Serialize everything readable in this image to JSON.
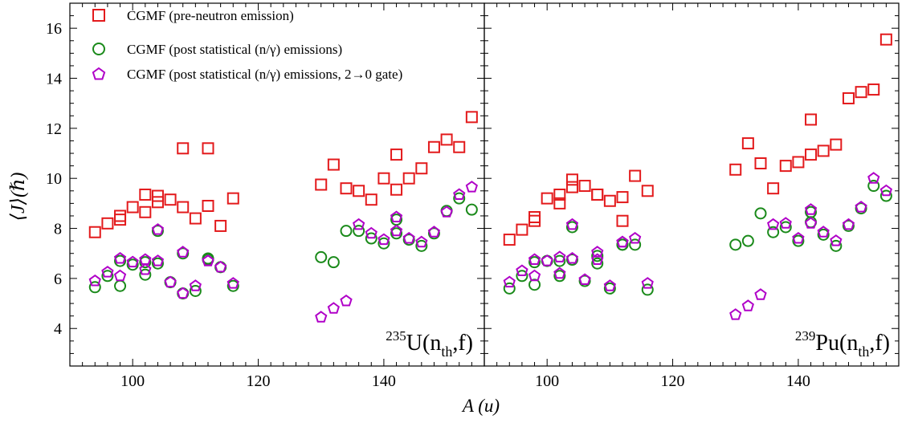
{
  "colors": {
    "pre": "#e31a1c",
    "post": "#1a8a1a",
    "gate": "#b000c8"
  },
  "legend": {
    "location": "top-left",
    "entries": [
      {
        "label": "CGMF (pre-neutron emission)",
        "marker": "square",
        "color": "#e31a1c"
      },
      {
        "label": "CGMF (post statistical (n/γ) emissions)",
        "marker": "circle",
        "color": "#1a8a1a"
      },
      {
        "label": "CGMF (post statistical (n/γ) emissions, 2→0 gate)",
        "marker": "pentagon",
        "color": "#b000c8"
      }
    ]
  },
  "chart_data": [
    {
      "type": "scatter",
      "panel_label": {
        "sup": "235",
        "base": "U(n",
        "sub": "th",
        "tail": ",f)"
      },
      "xlabel": "A (u)",
      "ylabel": "⟨J⟩(ℏ)",
      "xlim": [
        90,
        156
      ],
      "ylim": [
        2.5,
        17
      ],
      "xticks": [
        100,
        120,
        140
      ],
      "yticks": [
        4,
        6,
        8,
        10,
        12,
        14,
        16
      ],
      "series": [
        {
          "name": "CGMF (pre-neutron emission)",
          "marker": "square",
          "x": [
            94,
            96,
            98,
            98,
            100,
            102,
            102,
            104,
            104,
            106,
            108,
            108,
            110,
            112,
            112,
            114,
            116,
            130,
            132,
            134,
            136,
            138,
            140,
            142,
            142,
            144,
            146,
            148,
            150,
            152,
            154
          ],
          "y": [
            7.85,
            8.2,
            8.35,
            8.5,
            8.85,
            8.65,
            9.35,
            9.05,
            9.3,
            9.15,
            8.85,
            11.2,
            8.4,
            8.9,
            11.2,
            8.1,
            9.2,
            9.75,
            10.55,
            9.6,
            9.5,
            9.15,
            10.0,
            9.55,
            10.95,
            10.0,
            10.4,
            11.25,
            11.55,
            11.25,
            12.45
          ]
        },
        {
          "name": "CGMF (post statistical (n/γ) emissions)",
          "marker": "circle",
          "x": [
            94,
            96,
            98,
            98,
            100,
            102,
            102,
            104,
            104,
            106,
            108,
            108,
            110,
            112,
            112,
            114,
            116,
            130,
            132,
            134,
            136,
            138,
            140,
            142,
            142,
            144,
            146,
            148,
            150,
            152,
            154
          ],
          "y": [
            5.65,
            6.1,
            5.7,
            6.7,
            6.55,
            6.15,
            6.65,
            6.6,
            7.9,
            5.85,
            5.4,
            7.0,
            5.5,
            6.75,
            6.8,
            6.45,
            5.7,
            6.85,
            6.65,
            7.9,
            7.9,
            7.6,
            7.4,
            7.8,
            8.35,
            7.55,
            7.3,
            7.8,
            8.7,
            9.2,
            8.75
          ]
        },
        {
          "name": "CGMF (post statistical (n/γ) emissions, 2→0 gate)",
          "marker": "pentagon",
          "x": [
            94,
            96,
            98,
            98,
            100,
            102,
            102,
            104,
            104,
            106,
            108,
            108,
            110,
            112,
            112,
            114,
            116,
            130,
            132,
            134,
            136,
            138,
            140,
            142,
            142,
            144,
            146,
            148,
            150,
            152,
            154
          ],
          "y": [
            5.9,
            6.25,
            6.1,
            6.8,
            6.65,
            6.35,
            6.75,
            6.7,
            7.95,
            5.85,
            5.4,
            7.05,
            5.7,
            6.7,
            6.7,
            6.45,
            5.8,
            4.45,
            4.8,
            5.1,
            8.15,
            7.8,
            7.55,
            7.9,
            8.45,
            7.6,
            7.45,
            7.85,
            8.65,
            9.35,
            9.65
          ]
        }
      ]
    },
    {
      "type": "scatter",
      "panel_label": {
        "sup": "239",
        "base": "Pu(n",
        "sub": "th",
        "tail": ",f)"
      },
      "xlabel": "A (u)",
      "ylabel": "",
      "xlim": [
        90,
        156
      ],
      "ylim": [
        2.5,
        17
      ],
      "xticks": [
        100,
        120,
        140
      ],
      "yticks": [
        4,
        6,
        8,
        10,
        12,
        14,
        16
      ],
      "series": [
        {
          "name": "CGMF (pre-neutron emission)",
          "marker": "square",
          "x": [
            94,
            96,
            98,
            98,
            100,
            102,
            102,
            104,
            104,
            106,
            108,
            108,
            110,
            112,
            112,
            114,
            116,
            130,
            132,
            134,
            136,
            138,
            140,
            142,
            142,
            144,
            146,
            148,
            150,
            152,
            154
          ],
          "y": [
            7.55,
            7.95,
            8.3,
            8.45,
            9.2,
            9.0,
            9.35,
            9.65,
            9.95,
            9.7,
            9.35,
            9.35,
            9.1,
            8.3,
            9.25,
            10.1,
            9.5,
            10.35,
            11.4,
            10.6,
            9.6,
            10.5,
            10.65,
            10.95,
            12.35,
            11.1,
            11.35,
            13.2,
            13.45,
            13.55,
            15.55
          ]
        },
        {
          "name": "CGMF (post statistical (n/γ) emissions)",
          "marker": "circle",
          "x": [
            94,
            96,
            98,
            98,
            100,
            102,
            102,
            104,
            104,
            106,
            108,
            108,
            110,
            112,
            112,
            114,
            116,
            130,
            132,
            134,
            136,
            138,
            140,
            142,
            142,
            144,
            146,
            148,
            150,
            152,
            154
          ],
          "y": [
            5.6,
            6.1,
            5.75,
            6.65,
            6.7,
            6.1,
            6.7,
            6.75,
            8.05,
            5.9,
            6.6,
            6.9,
            5.6,
            7.35,
            7.35,
            7.35,
            5.55,
            7.35,
            7.5,
            8.6,
            7.85,
            8.05,
            7.5,
            8.25,
            8.65,
            7.75,
            7.3,
            8.1,
            8.8,
            9.7,
            9.3
          ]
        },
        {
          "name": "CGMF (post statistical (n/γ) emissions, 2→0 gate)",
          "marker": "pentagon",
          "x": [
            94,
            96,
            98,
            98,
            100,
            102,
            102,
            104,
            104,
            106,
            108,
            108,
            110,
            112,
            112,
            114,
            116,
            130,
            132,
            134,
            136,
            138,
            140,
            142,
            142,
            144,
            146,
            148,
            150,
            152,
            154
          ],
          "y": [
            5.85,
            6.3,
            6.1,
            6.75,
            6.7,
            6.2,
            6.85,
            6.8,
            8.15,
            5.95,
            6.75,
            7.05,
            5.7,
            7.45,
            7.45,
            7.6,
            5.8,
            4.55,
            4.9,
            5.35,
            8.15,
            8.2,
            7.6,
            8.2,
            8.75,
            7.85,
            7.5,
            8.15,
            8.85,
            10.0,
            9.5
          ]
        }
      ]
    }
  ]
}
